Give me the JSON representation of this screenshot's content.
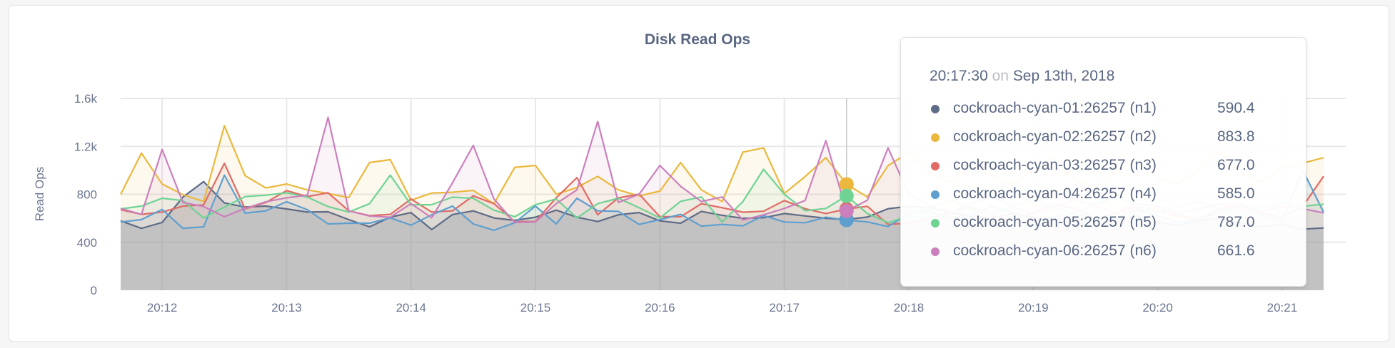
{
  "chart_data": {
    "type": "area",
    "title": "Disk Read Ops",
    "ylabel": "Read Ops",
    "xlabel": "",
    "ylim": [
      0,
      1600
    ],
    "y_ticks": [
      "0",
      "400",
      "800",
      "1.2k",
      "1.6k"
    ],
    "y_tick_values": [
      0,
      400,
      800,
      1200,
      1600
    ],
    "x_ticks": [
      "20:12",
      "20:13",
      "20:14",
      "20:15",
      "20:16",
      "20:17",
      "20:18",
      "20:19",
      "20:20",
      "20:21"
    ],
    "x_start": "20:11:40",
    "x_end": "20:21:20",
    "x_interval_seconds": 10,
    "grid": true,
    "series": [
      {
        "name": "cockroach-cyan-01:26257 (n1)",
        "color": "#5f6c87",
        "values": [
          579,
          516,
          565,
          777,
          906,
          728,
          694,
          702,
          678,
          652,
          654,
          589,
          529,
          609,
          648,
          506,
          631,
          662,
          603,
          583,
          609,
          668,
          609,
          573,
          629,
          648,
          579,
          559,
          658,
          625,
          600,
          605,
          640,
          620,
          600,
          590,
          610,
          680,
          700,
          690,
          650,
          620,
          600,
          640,
          610,
          580,
          600,
          560,
          590,
          620,
          570,
          540,
          580,
          600,
          560,
          530,
          550,
          510,
          519
        ]
      },
      {
        "name": "cockroach-cyan-02:26257 (n2)",
        "color": "#ebb83d",
        "values": [
          800,
          1144,
          886,
          797,
          741,
          1372,
          956,
          853,
          886,
          837,
          807,
          773,
          1065,
          1089,
          751,
          811,
          817,
          833,
          722,
          1025,
          1041,
          801,
          857,
          950,
          837,
          787,
          827,
          1065,
          837,
          740,
          1152,
          1188,
          808,
          948,
          1106,
          884,
          778,
          1039,
          1150,
          980,
          900,
          1050,
          950,
          880,
          1000,
          1120,
          920,
          860,
          1000,
          1080,
          930,
          890,
          1010,
          1150,
          980,
          900,
          1020,
          1060,
          1106
        ]
      },
      {
        "name": "cockroach-cyan-03:26257 (n3)",
        "color": "#e06b66",
        "values": [
          672,
          633,
          652,
          702,
          712,
          1059,
          678,
          732,
          831,
          781,
          813,
          662,
          623,
          633,
          761,
          652,
          662,
          787,
          722,
          573,
          573,
          771,
          940,
          629,
          771,
          801,
          613,
          613,
          722,
          688,
          651,
          659,
          748,
          680,
          640,
          677,
          700,
          549,
          560,
          600,
          650,
          700,
          620,
          580,
          650,
          720,
          680,
          600,
          640,
          700,
          660,
          620,
          590,
          680,
          720,
          640,
          610,
          700,
          951
        ]
      },
      {
        "name": "cockroach-cyan-04:26257 (n4)",
        "color": "#5e9fd0",
        "values": [
          569,
          589,
          674,
          516,
          529,
          960,
          643,
          662,
          738,
          672,
          553,
          559,
          559,
          603,
          543,
          629,
          702,
          553,
          500,
          563,
          702,
          553,
          767,
          662,
          658,
          549,
          589,
          633,
          535,
          549,
          537,
          623,
          569,
          563,
          609,
          585,
          570,
          531,
          640,
          660,
          600,
          620,
          700,
          650,
          580,
          610,
          640,
          590,
          600,
          680,
          620,
          560,
          600,
          650,
          700,
          620,
          580,
          1000,
          651
        ]
      },
      {
        "name": "cockroach-cyan-05:26257 (n5)",
        "color": "#6fd394",
        "values": [
          678,
          702,
          767,
          748,
          603,
          694,
          781,
          793,
          813,
          777,
          698,
          652,
          722,
          960,
          712,
          714,
          777,
          767,
          668,
          613,
          714,
          761,
          603,
          722,
          767,
          688,
          603,
          742,
          778,
          569,
          740,
          1009,
          800,
          663,
          682,
          787,
          640,
          563,
          620,
          700,
          750,
          680,
          620,
          700,
          760,
          690,
          640,
          720,
          780,
          700,
          650,
          700,
          740,
          680,
          620,
          690,
          730,
          700,
          718
        ]
      },
      {
        "name": "cockroach-cyan-06:26257 (n6)",
        "color": "#cb80bd",
        "values": [
          682,
          633,
          1174,
          732,
          698,
          613,
          682,
          738,
          771,
          793,
          1442,
          662,
          619,
          609,
          722,
          605,
          896,
          1208,
          761,
          565,
          569,
          722,
          837,
          1408,
          732,
          801,
          1041,
          867,
          740,
          778,
          585,
          629,
          682,
          748,
          1248,
          662,
          750,
          1188,
          800,
          700,
          650,
          720,
          780,
          700,
          640,
          690,
          760,
          700,
          650,
          720,
          700,
          640,
          680,
          720,
          690,
          660,
          700,
          680,
          645
        ]
      }
    ],
    "tooltip": {
      "time": "20:17:30",
      "on": "on",
      "date": "Sep 13th, 2018",
      "rows": [
        {
          "label": "cockroach-cyan-01:26257 (n1)",
          "value": "590.4",
          "color": "#5f6c87"
        },
        {
          "label": "cockroach-cyan-02:26257 (n2)",
          "value": "883.8",
          "color": "#ebb83d"
        },
        {
          "label": "cockroach-cyan-03:26257 (n3)",
          "value": "677.0",
          "color": "#e06b66"
        },
        {
          "label": "cockroach-cyan-04:26257 (n4)",
          "value": "585.0",
          "color": "#5e9fd0"
        },
        {
          "label": "cockroach-cyan-05:26257 (n5)",
          "value": "787.0",
          "color": "#6fd394"
        },
        {
          "label": "cockroach-cyan-06:26257 (n6)",
          "value": "661.6",
          "color": "#cb80bd"
        }
      ]
    }
  }
}
